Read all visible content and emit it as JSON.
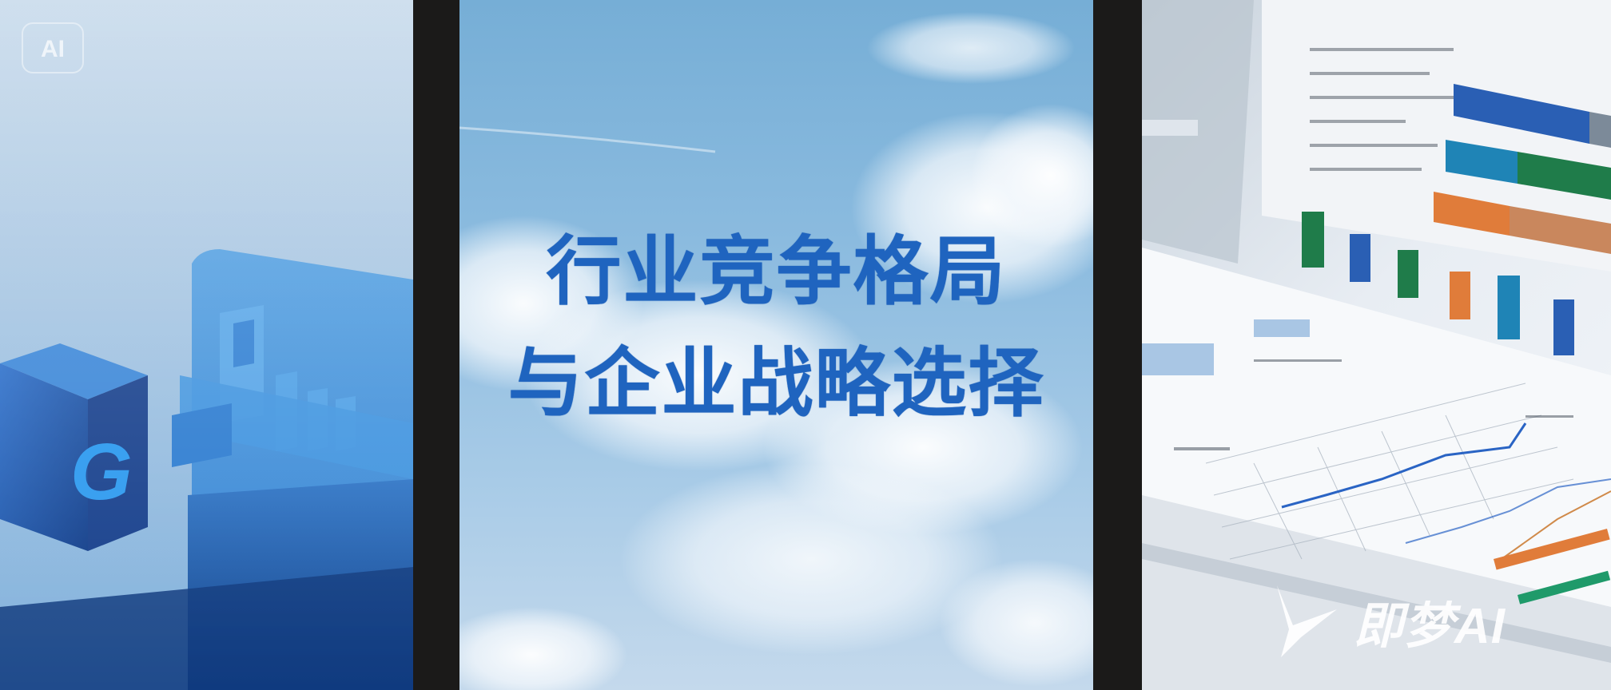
{
  "left_panel": {
    "badge_label": "AI",
    "cube_glyph": "G",
    "icon": "server-rack-illustration"
  },
  "center_panel": {
    "title_line1": "行业竞争格局",
    "title_line2": "与企业战略选择",
    "title_color": "#1f64bf",
    "background": "sky-with-clouds"
  },
  "right_panel": {
    "icon": "report-charts-illustration",
    "brand_logo": "jimeng-logo-icon",
    "brand_text": "即梦AI"
  },
  "colors": {
    "divider": "#1b1a19",
    "sky": "#8bbbdf",
    "cube_blue": "#1f5fb8"
  }
}
